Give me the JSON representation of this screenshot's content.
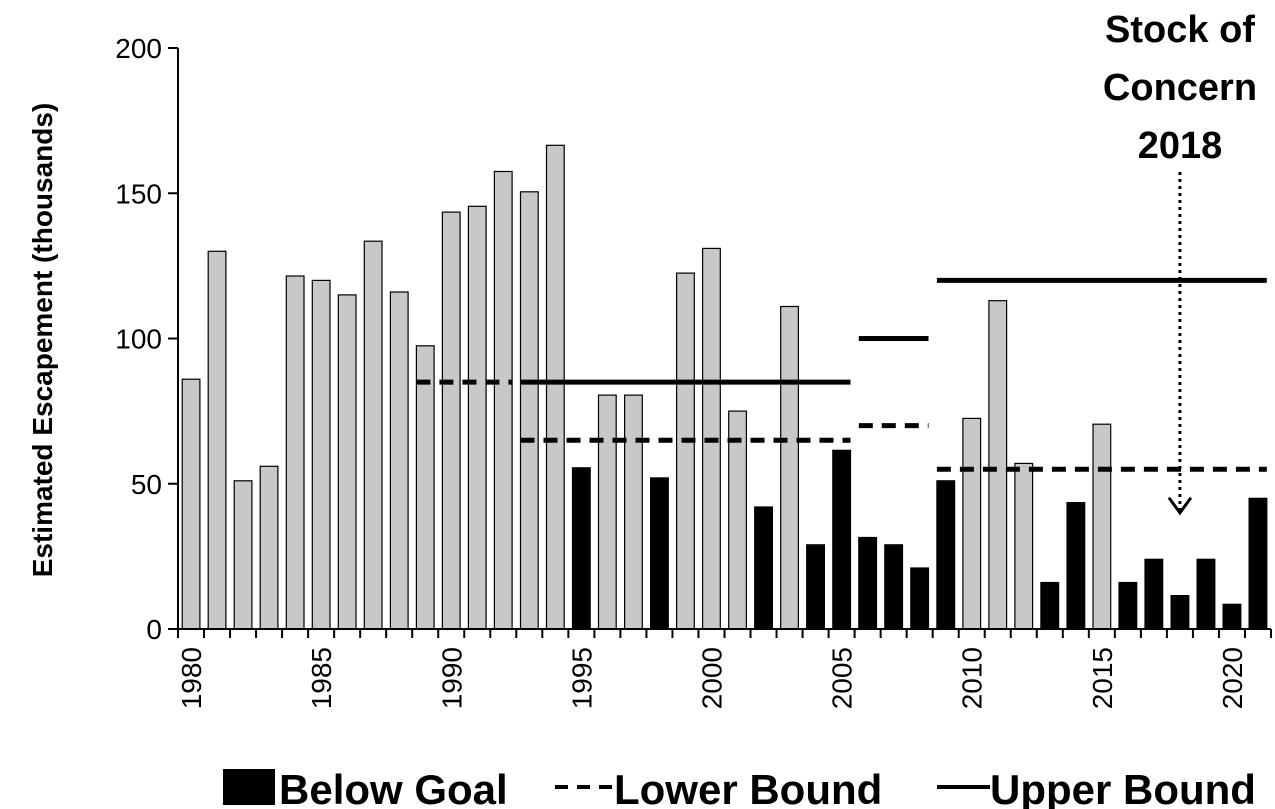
{
  "chart_data": {
    "type": "bar",
    "title": "",
    "xlabel": "",
    "ylabel": "Estimated Escapement (thousands)",
    "ylim": [
      0,
      200
    ],
    "xlim": [
      1980,
      2021
    ],
    "y_ticks": [
      "0",
      "50",
      "100",
      "150",
      "200"
    ],
    "x_ticks": [
      "1980",
      "1985",
      "1990",
      "1995",
      "2000",
      "2005",
      "2010",
      "2015",
      "2020"
    ],
    "x_tick_labels_rotated": true,
    "grid": false,
    "years": [
      1980,
      1981,
      1982,
      1983,
      1984,
      1985,
      1986,
      1987,
      1988,
      1989,
      1990,
      1991,
      1992,
      1993,
      1994,
      1995,
      1996,
      1997,
      1998,
      1999,
      2000,
      2001,
      2002,
      2003,
      2004,
      2005,
      2006,
      2007,
      2008,
      2009,
      2010,
      2011,
      2012,
      2013,
      2014,
      2015,
      2016,
      2017,
      2018,
      2019,
      2020,
      2021
    ],
    "values": [
      86,
      130,
      51,
      56,
      121.5,
      120,
      115,
      133.5,
      116,
      97.5,
      143.5,
      145.5,
      157.5,
      150.5,
      166.5,
      55.5,
      80.5,
      80.5,
      52,
      122.5,
      131,
      75,
      42,
      111,
      29,
      61.5,
      31.5,
      29,
      21,
      51,
      72.5,
      113,
      57,
      16,
      43.5,
      70.5,
      16,
      24,
      11.5,
      24,
      8.5,
      45
    ],
    "below_goal": [
      false,
      false,
      false,
      false,
      false,
      false,
      false,
      false,
      false,
      false,
      false,
      false,
      false,
      false,
      false,
      true,
      false,
      false,
      true,
      false,
      false,
      false,
      true,
      false,
      true,
      true,
      true,
      true,
      true,
      true,
      false,
      false,
      false,
      true,
      true,
      false,
      true,
      true,
      true,
      true,
      true,
      true
    ],
    "series": [
      {
        "name": "Below Goal",
        "kind": "bar-fill",
        "color": "#000000"
      },
      {
        "name": "Lower Bound",
        "kind": "dashed-line",
        "color": "#000000",
        "segments": [
          {
            "from": 1989,
            "to": 1992,
            "value": 85
          },
          {
            "from": 1993,
            "to": 2005,
            "value": 65
          },
          {
            "from": 2006,
            "to": 2008,
            "value": 70
          },
          {
            "from": 2009,
            "to": 2021,
            "value": 55
          }
        ]
      },
      {
        "name": "Upper Bound",
        "kind": "solid-line",
        "color": "#000000",
        "segments": [
          {
            "from": 1993,
            "to": 2005,
            "value": 85
          },
          {
            "from": 2006,
            "to": 2008,
            "value": 100
          },
          {
            "from": 2009,
            "to": 2021,
            "value": 120
          }
        ]
      }
    ],
    "annotation": {
      "lines": [
        "Stock of",
        "Concern",
        "2018"
      ],
      "year": 2018,
      "arrow_to": 40
    },
    "legend_placement": "bottom",
    "colors": {
      "bar_default": "#c8c8c8",
      "bar_below_goal": "#000000"
    }
  }
}
